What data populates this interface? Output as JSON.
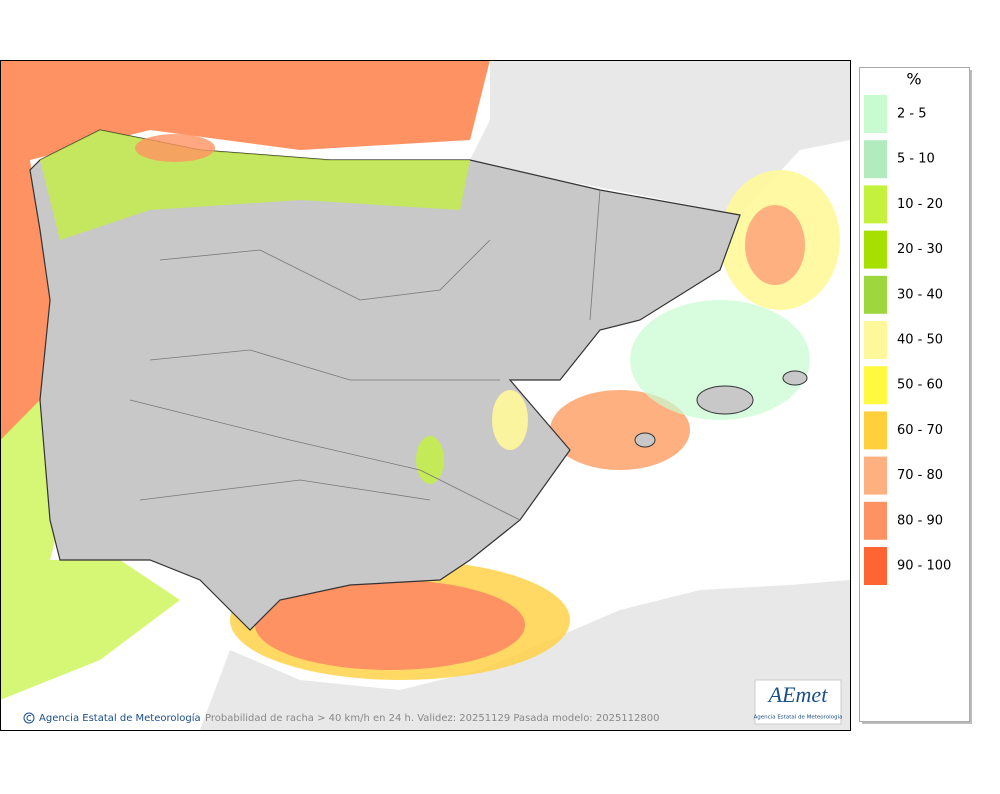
{
  "legend": {
    "title": "%",
    "items": [
      {
        "label": "2 - 5",
        "color": "#c8fcd0"
      },
      {
        "label": "5 - 10",
        "color": "#b2ecbe"
      },
      {
        "label": "10 - 20",
        "color": "#c4f23c"
      },
      {
        "label": "20 - 30",
        "color": "#a6e000"
      },
      {
        "label": "30 - 40",
        "color": "#9ed63e"
      },
      {
        "label": "40 - 50",
        "color": "#fff89a"
      },
      {
        "label": "50 - 60",
        "color": "#fffa40"
      },
      {
        "label": "60 - 70",
        "color": "#ffd03c"
      },
      {
        "label": "70 - 80",
        "color": "#ffb080"
      },
      {
        "label": "80 - 90",
        "color": "#ff9262"
      },
      {
        "label": "90 - 100",
        "color": "#ff6432"
      }
    ]
  },
  "footer": {
    "credit": "Agencia Estatal de Meteorología",
    "caption": "Probabilidad de racha > 40 km/h en 24 h. Validez: 20251129 Pasada modelo: 2025112800"
  },
  "logo": {
    "name": "AEmet",
    "subtitle": "Agencia Estatal de Meteorología"
  }
}
